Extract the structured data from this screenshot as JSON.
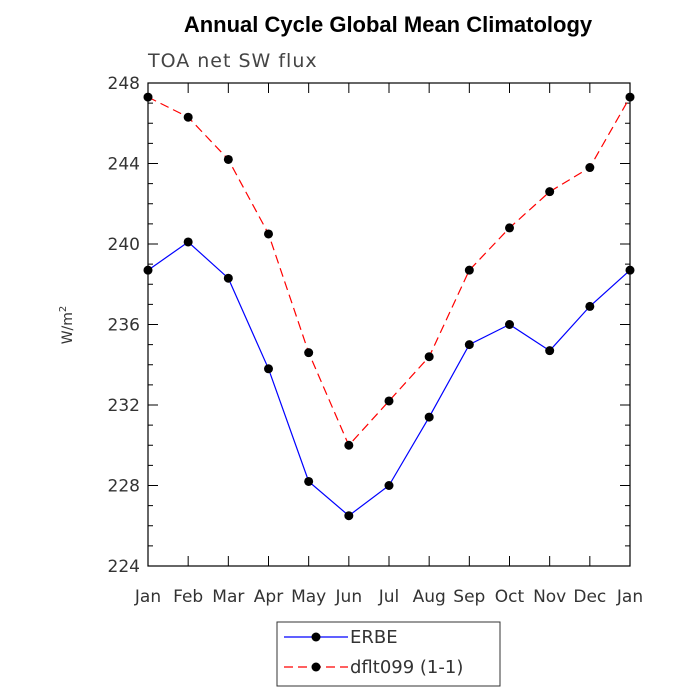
{
  "chart_data": {
    "type": "line",
    "title": "Annual Cycle Global Mean Climatology",
    "subtitle": "TOA net SW flux",
    "xlabel": "",
    "ylabel": "W/m",
    "ylabel_superscript": "2",
    "categories": [
      "Jan",
      "Feb",
      "Mar",
      "Apr",
      "May",
      "Jun",
      "Jul",
      "Aug",
      "Sep",
      "Oct",
      "Nov",
      "Dec",
      "Jan"
    ],
    "ylim": [
      224,
      248
    ],
    "yticks": [
      224,
      228,
      232,
      236,
      240,
      244,
      248
    ],
    "series": [
      {
        "name": "ERBE",
        "color": "#0000ff",
        "dash": "solid",
        "values": [
          238.7,
          240.1,
          238.3,
          233.8,
          228.2,
          226.5,
          228.0,
          231.4,
          235.0,
          236.0,
          234.7,
          236.9,
          238.7
        ]
      },
      {
        "name": "dflt099 (1-1)",
        "color": "#ff0000",
        "dash": "dashed",
        "values": [
          247.3,
          246.3,
          244.2,
          240.5,
          234.6,
          230.0,
          232.2,
          234.4,
          238.7,
          240.8,
          242.6,
          243.8,
          247.3
        ]
      }
    ]
  }
}
